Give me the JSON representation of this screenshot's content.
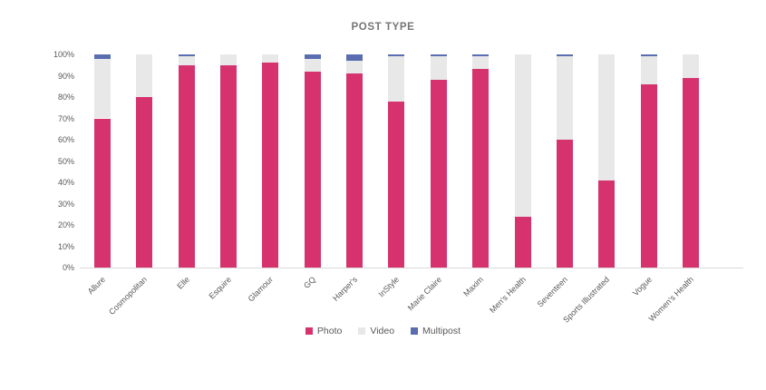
{
  "window": {
    "background": "#FFFFFF"
  },
  "chart_data": {
    "type": "bar",
    "stacked": true,
    "orientation": "vertical",
    "title": "POST TYPE",
    "categories": [
      "Allure",
      "Cosmopolitan",
      "Elle",
      "Esquire",
      "Glamour",
      "GQ",
      "Harper's",
      "InStyle",
      "Marie Claire",
      "Maxim",
      "Men's Health",
      "Seventeen",
      "Sports Illustrated",
      "Vogue",
      "Women's Health"
    ],
    "series": [
      {
        "name": "Photo",
        "color": "#D6336E",
        "values": [
          70,
          80,
          95,
          95,
          96,
          92,
          91,
          78,
          88,
          93,
          24,
          60,
          41,
          86,
          89
        ]
      },
      {
        "name": "Video",
        "color": "#E8E8E8",
        "values": [
          28,
          20,
          4,
          5,
          4,
          6,
          6,
          21,
          11,
          6,
          76,
          39,
          59,
          13,
          11
        ]
      },
      {
        "name": "Multipost",
        "color": "#5A6DB0",
        "values": [
          2,
          0,
          1,
          0,
          0,
          2,
          3,
          1,
          1,
          1,
          0,
          1,
          0,
          1,
          0
        ]
      }
    ],
    "ylim": [
      0,
      100
    ],
    "y_ticks": [
      "0%",
      "10%",
      "20%",
      "30%",
      "40%",
      "50%",
      "60%",
      "70%",
      "80%",
      "90%",
      "100%"
    ],
    "xlabel": "",
    "ylabel": "",
    "grid": false,
    "x_tick_rotation_deg": 45,
    "legend": {
      "position": "bottom",
      "entries": [
        "Photo",
        "Video",
        "Multipost"
      ]
    },
    "style": {
      "title_color": "#757575",
      "tick_label_color": "#595959",
      "axis_line_color": "#D9D9D9",
      "legend_text_color": "#595959",
      "background": "#FFFFFF"
    }
  }
}
